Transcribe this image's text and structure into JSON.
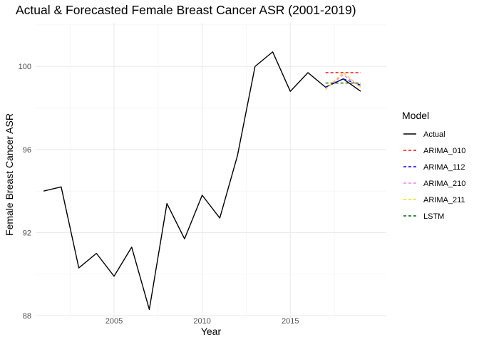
{
  "chart_data": {
    "type": "line",
    "title": "Actual & Forecasted Female Breast Cancer ASR (2001-2019)",
    "xlabel": "Year",
    "ylabel": "Female Breast Cancer ASR",
    "xlim": [
      2000.55,
      2020.45
    ],
    "ylim": [
      87.9,
      102.1
    ],
    "x_ticks": [
      2005,
      2010,
      2015
    ],
    "y_ticks": [
      88,
      92,
      96,
      100
    ],
    "grid": true,
    "legend": {
      "title": "Model",
      "position": "right"
    },
    "series": [
      {
        "name": "Actual",
        "color": "#000000",
        "dash": "solid",
        "x": [
          2001,
          2002,
          2003,
          2004,
          2005,
          2006,
          2007,
          2008,
          2009,
          2010,
          2011,
          2012,
          2013,
          2014,
          2015,
          2016,
          2017,
          2018,
          2019
        ],
        "y": [
          94.0,
          94.2,
          90.3,
          91.0,
          89.9,
          91.3,
          88.3,
          93.4,
          91.7,
          93.8,
          92.7,
          95.7,
          100.0,
          100.7,
          98.8,
          99.7,
          99.0,
          99.4,
          98.8
        ]
      },
      {
        "name": "ARIMA_010",
        "color": "#ff0000",
        "dash": "dashed",
        "x": [
          2017,
          2018,
          2019
        ],
        "y": [
          99.7,
          99.7,
          99.7
        ]
      },
      {
        "name": "ARIMA_112",
        "color": "#0000ff",
        "dash": "dashed",
        "x": [
          2017,
          2018,
          2019
        ],
        "y": [
          99.0,
          99.4,
          99.1
        ]
      },
      {
        "name": "ARIMA_210",
        "color": "#ee82ee",
        "dash": "dashed",
        "x": [
          2017,
          2018,
          2019
        ],
        "y": [
          98.9,
          99.6,
          99.0
        ]
      },
      {
        "name": "ARIMA_211",
        "color": "#ffd700",
        "dash": "dashed",
        "x": [
          2017,
          2018,
          2019
        ],
        "y": [
          98.9,
          99.7,
          99.0
        ]
      },
      {
        "name": "LSTM",
        "color": "#006400",
        "dash": "dashed",
        "x": [
          2017,
          2018,
          2019
        ],
        "y": [
          99.2,
          99.2,
          99.2
        ]
      }
    ]
  }
}
